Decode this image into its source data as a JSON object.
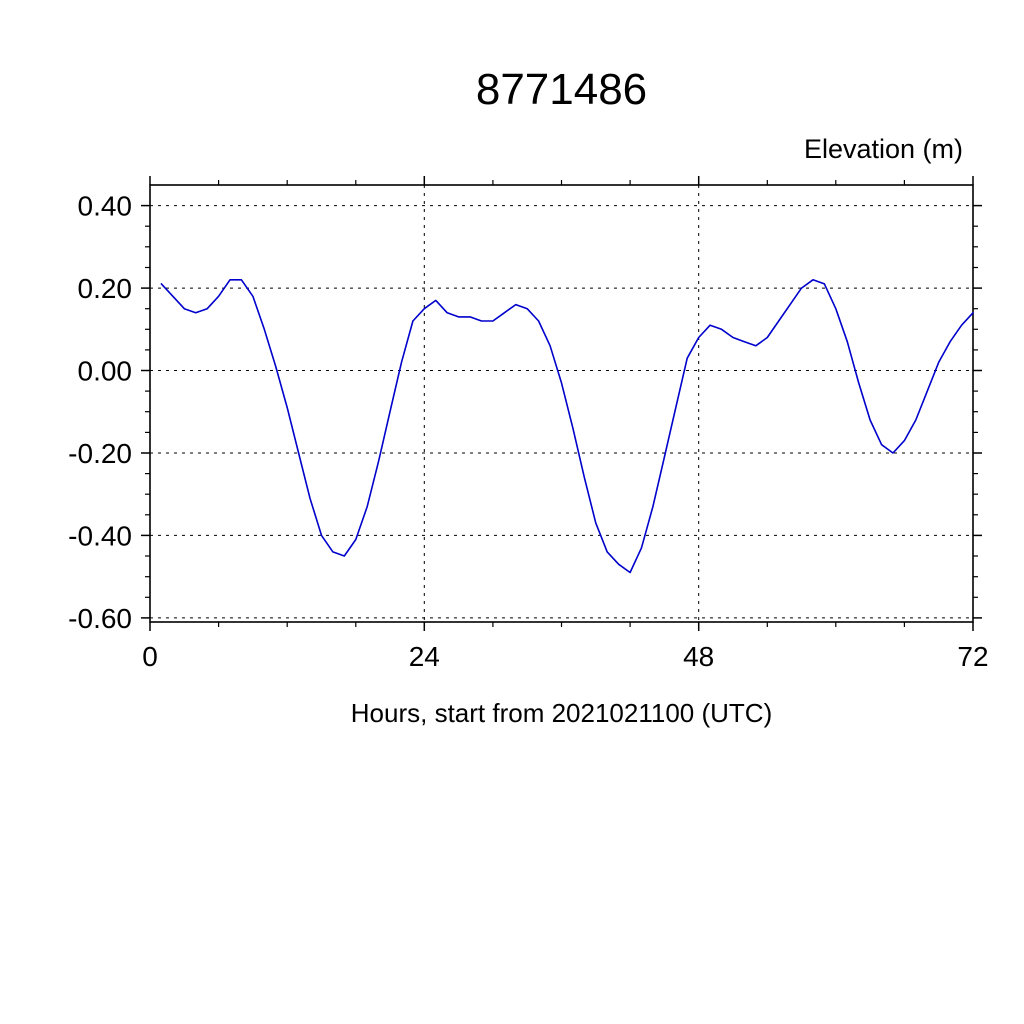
{
  "page": {
    "background": "#ffffff"
  },
  "chart_data": {
    "type": "line",
    "title": "8771486",
    "ylabel": "Elevation (m)",
    "ylabel_position": "top-right",
    "xlabel": "Hours, start from 2021021100 (UTC)",
    "xlim": [
      0,
      72
    ],
    "ylim": [
      -0.61,
      0.45
    ],
    "x_ticks": [
      0,
      24,
      48,
      72
    ],
    "y_ticks": [
      0.4,
      0.2,
      0.0,
      -0.2,
      -0.4,
      -0.6
    ],
    "x_minor_step": 6,
    "y_minor_step": 0.05,
    "grid": true,
    "grid_style": "dashed",
    "legend": "none",
    "axis_color": "#000000",
    "line_color": "#0000cc",
    "series": [
      {
        "name": "Elevation",
        "x": [
          1,
          2,
          3,
          4,
          5,
          6,
          7,
          8,
          9,
          10,
          11,
          12,
          13,
          14,
          15,
          16,
          17,
          18,
          19,
          20,
          21,
          22,
          23,
          24,
          25,
          26,
          27,
          28,
          29,
          30,
          31,
          32,
          33,
          34,
          35,
          36,
          37,
          38,
          39,
          40,
          41,
          42,
          43,
          44,
          45,
          46,
          47,
          48,
          49,
          50,
          51,
          52,
          53,
          54,
          55,
          56,
          57,
          58,
          59,
          60,
          61,
          62,
          63,
          64,
          65,
          66,
          67,
          68,
          69,
          70,
          71,
          72
        ],
        "y": [
          0.21,
          0.18,
          0.15,
          0.14,
          0.15,
          0.18,
          0.22,
          0.22,
          0.18,
          0.1,
          0.01,
          -0.09,
          -0.2,
          -0.31,
          -0.4,
          -0.44,
          -0.45,
          -0.41,
          -0.33,
          -0.22,
          -0.1,
          0.02,
          0.12,
          0.15,
          0.17,
          0.14,
          0.13,
          0.13,
          0.12,
          0.12,
          0.14,
          0.16,
          0.15,
          0.12,
          0.06,
          -0.03,
          -0.14,
          -0.26,
          -0.37,
          -0.44,
          -0.47,
          -0.49,
          -0.43,
          -0.33,
          -0.21,
          -0.09,
          0.03,
          0.08,
          0.11,
          0.1,
          0.08,
          0.07,
          0.06,
          0.08,
          0.12,
          0.16,
          0.2,
          0.22,
          0.21,
          0.15,
          0.07,
          -0.03,
          -0.12,
          -0.18,
          -0.2,
          -0.17,
          -0.12,
          -0.05,
          0.02,
          0.07,
          0.11,
          0.14
        ]
      }
    ]
  }
}
